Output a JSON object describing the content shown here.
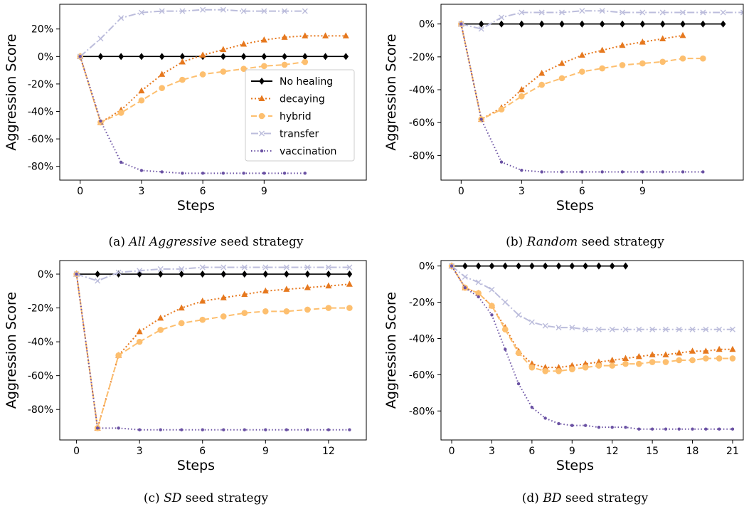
{
  "series_styles": [
    {
      "name": "No healing",
      "color": "#000000",
      "marker": "diamond",
      "dash": ""
    },
    {
      "name": "decaying",
      "color": "#e6781e",
      "marker": "triangle",
      "dash": "2,3"
    },
    {
      "name": "hybrid",
      "color": "#fdbf6f",
      "marker": "circle",
      "dash": "8,4"
    },
    {
      "name": "transfer",
      "color": "#bcbddc",
      "marker": "x",
      "dash": "10,3,2,3"
    },
    {
      "name": "vaccination",
      "color": "#6a51a3",
      "marker": "dot",
      "dash": "1.5,3"
    }
  ],
  "chart_data": [
    {
      "type": "line",
      "caption_prefix": "(a) ",
      "caption_italic": "All Aggressive",
      "caption_suffix": " seed strategy",
      "xlabel": "Steps",
      "ylabel": "Aggression Score",
      "xlim": [
        -1,
        14
      ],
      "ylim": [
        -0.9,
        0.38
      ],
      "xticks": [
        0,
        3,
        6,
        9
      ],
      "yticks": [
        -0.8,
        -0.6,
        -0.4,
        -0.2,
        0,
        0.2
      ],
      "legend": "center-right",
      "series": [
        {
          "name": "No healing",
          "x": [
            0,
            1,
            2,
            3,
            4,
            5,
            6,
            7,
            8,
            9,
            10,
            11,
            12,
            13
          ],
          "values": [
            0,
            0,
            0,
            0,
            0,
            0,
            0,
            0,
            0,
            0,
            0,
            0,
            0,
            0
          ]
        },
        {
          "name": "decaying",
          "x": [
            0,
            1,
            2,
            3,
            4,
            5,
            6,
            7,
            8,
            9,
            10,
            11,
            12,
            13
          ],
          "values": [
            0,
            -0.48,
            -0.39,
            -0.25,
            -0.13,
            -0.04,
            0.01,
            0.05,
            0.09,
            0.12,
            0.14,
            0.15,
            0.15,
            0.15
          ]
        },
        {
          "name": "hybrid",
          "x": [
            0,
            1,
            2,
            3,
            4,
            5,
            6,
            7,
            8,
            9,
            10,
            11
          ],
          "values": [
            0,
            -0.48,
            -0.41,
            -0.32,
            -0.23,
            -0.17,
            -0.13,
            -0.11,
            -0.09,
            -0.07,
            -0.06,
            -0.04
          ]
        },
        {
          "name": "transfer",
          "x": [
            0,
            1,
            2,
            3,
            4,
            5,
            6,
            7,
            8,
            9,
            10,
            11
          ],
          "values": [
            0,
            0.13,
            0.28,
            0.32,
            0.33,
            0.33,
            0.34,
            0.34,
            0.33,
            0.33,
            0.33,
            0.33
          ]
        },
        {
          "name": "vaccination",
          "x": [
            0,
            1,
            2,
            3,
            4,
            5,
            6,
            7,
            8,
            9,
            10,
            11
          ],
          "values": [
            0,
            -0.47,
            -0.77,
            -0.83,
            -0.84,
            -0.85,
            -0.85,
            -0.85,
            -0.85,
            -0.85,
            -0.85,
            -0.85
          ]
        }
      ]
    },
    {
      "type": "line",
      "caption_prefix": "(b) ",
      "caption_italic": "Random",
      "caption_suffix": " seed strategy",
      "xlabel": "Steps",
      "ylabel": "Aggression Score",
      "xlim": [
        -1,
        14
      ],
      "ylim": [
        -0.95,
        0.12
      ],
      "xticks": [
        0,
        3,
        6,
        9
      ],
      "yticks": [
        -0.8,
        -0.6,
        -0.4,
        -0.2,
        0
      ],
      "legend": "none",
      "series": [
        {
          "name": "No healing",
          "x": [
            0,
            1,
            2,
            3,
            4,
            5,
            6,
            7,
            8,
            9,
            10,
            11,
            12,
            13
          ],
          "values": [
            0,
            0,
            0,
            0,
            0,
            0,
            0,
            0,
            0,
            0,
            0,
            0,
            0,
            0
          ]
        },
        {
          "name": "decaying",
          "x": [
            0,
            1,
            2,
            3,
            4,
            5,
            6,
            7,
            8,
            9,
            10,
            11
          ],
          "values": [
            0,
            -0.58,
            -0.51,
            -0.4,
            -0.3,
            -0.24,
            -0.19,
            -0.16,
            -0.13,
            -0.11,
            -0.09,
            -0.07
          ]
        },
        {
          "name": "hybrid",
          "x": [
            0,
            1,
            2,
            3,
            4,
            5,
            6,
            7,
            8,
            9,
            10,
            11,
            12
          ],
          "values": [
            0,
            -0.58,
            -0.52,
            -0.44,
            -0.37,
            -0.33,
            -0.29,
            -0.27,
            -0.25,
            -0.24,
            -0.23,
            -0.21,
            -0.21
          ]
        },
        {
          "name": "transfer",
          "x": [
            0,
            1,
            2,
            3,
            4,
            5,
            6,
            7,
            8,
            9,
            10,
            11,
            12,
            13,
            14
          ],
          "values": [
            0,
            -0.03,
            0.04,
            0.07,
            0.07,
            0.07,
            0.08,
            0.08,
            0.07,
            0.07,
            0.07,
            0.07,
            0.07,
            0.07,
            0.07
          ]
        },
        {
          "name": "vaccination",
          "x": [
            0,
            1,
            2,
            3,
            4,
            5,
            6,
            7,
            8,
            9,
            10,
            11,
            12
          ],
          "values": [
            0,
            -0.58,
            -0.84,
            -0.89,
            -0.9,
            -0.9,
            -0.9,
            -0.9,
            -0.9,
            -0.9,
            -0.9,
            -0.9,
            -0.9
          ]
        }
      ]
    },
    {
      "type": "line",
      "caption_prefix": "(c) ",
      "caption_italic": "SD",
      "caption_suffix": " seed strategy",
      "xlabel": "Steps",
      "ylabel": "Aggression Score",
      "xlim": [
        -0.8,
        13.8
      ],
      "ylim": [
        -0.98,
        0.08
      ],
      "xticks": [
        0,
        3,
        6,
        9,
        12
      ],
      "yticks": [
        -0.8,
        -0.6,
        -0.4,
        -0.2,
        0
      ],
      "legend": "none",
      "series": [
        {
          "name": "No healing",
          "x": [
            0,
            1,
            2,
            3,
            4,
            5,
            6,
            7,
            8,
            9,
            10,
            11,
            12,
            13
          ],
          "values": [
            0,
            0,
            0,
            0,
            0,
            0,
            0,
            0,
            0,
            0,
            0,
            0,
            0,
            0
          ]
        },
        {
          "name": "decaying",
          "x": [
            0,
            1,
            2,
            3,
            4,
            5,
            6,
            7,
            8,
            9,
            10,
            11,
            12,
            13
          ],
          "values": [
            0,
            -0.91,
            -0.48,
            -0.34,
            -0.26,
            -0.2,
            -0.16,
            -0.14,
            -0.12,
            -0.1,
            -0.09,
            -0.08,
            -0.07,
            -0.06
          ]
        },
        {
          "name": "hybrid",
          "x": [
            0,
            1,
            2,
            3,
            4,
            5,
            6,
            7,
            8,
            9,
            10,
            11,
            12,
            13
          ],
          "values": [
            0,
            -0.91,
            -0.48,
            -0.4,
            -0.33,
            -0.29,
            -0.27,
            -0.25,
            -0.23,
            -0.22,
            -0.22,
            -0.21,
            -0.2,
            -0.2
          ]
        },
        {
          "name": "transfer",
          "x": [
            0,
            1,
            2,
            3,
            4,
            5,
            6,
            7,
            8,
            9,
            10,
            11,
            12,
            13
          ],
          "values": [
            0,
            -0.04,
            0.01,
            0.02,
            0.03,
            0.03,
            0.04,
            0.04,
            0.04,
            0.04,
            0.04,
            0.04,
            0.04,
            0.04
          ]
        },
        {
          "name": "vaccination",
          "x": [
            0,
            1,
            2,
            3,
            4,
            5,
            6,
            7,
            8,
            9,
            10,
            11,
            12,
            13
          ],
          "values": [
            0,
            -0.91,
            -0.91,
            -0.92,
            -0.92,
            -0.92,
            -0.92,
            -0.92,
            -0.92,
            -0.92,
            -0.92,
            -0.92,
            -0.92,
            -0.92
          ]
        }
      ]
    },
    {
      "type": "line",
      "caption_prefix": "(d) ",
      "caption_italic": "BD",
      "caption_suffix": " seed strategy",
      "xlabel": "Steps",
      "ylabel": "Aggression Score",
      "xlim": [
        -0.8,
        21.8
      ],
      "ylim": [
        -0.96,
        0.03
      ],
      "xticks": [
        0,
        3,
        6,
        9,
        12,
        15,
        18,
        21
      ],
      "yticks": [
        -0.8,
        -0.6,
        -0.4,
        -0.2,
        0
      ],
      "legend": "none",
      "series": [
        {
          "name": "No healing",
          "x": [
            0,
            1,
            2,
            3,
            4,
            5,
            6,
            7,
            8,
            9,
            10,
            11,
            12,
            13
          ],
          "values": [
            0,
            0,
            0,
            0,
            0,
            0,
            0,
            0,
            0,
            0,
            0,
            0,
            0,
            0
          ]
        },
        {
          "name": "decaying",
          "x": [
            0,
            1,
            2,
            3,
            4,
            5,
            6,
            7,
            8,
            9,
            10,
            11,
            12,
            13,
            14,
            15,
            16,
            17,
            18,
            19,
            20,
            21
          ],
          "values": [
            0,
            -0.12,
            -0.15,
            -0.22,
            -0.34,
            -0.47,
            -0.54,
            -0.56,
            -0.56,
            -0.55,
            -0.54,
            -0.53,
            -0.52,
            -0.51,
            -0.5,
            -0.49,
            -0.49,
            -0.48,
            -0.47,
            -0.47,
            -0.46,
            -0.46
          ]
        },
        {
          "name": "hybrid",
          "x": [
            0,
            1,
            2,
            3,
            4,
            5,
            6,
            7,
            8,
            9,
            10,
            11,
            12,
            13,
            14,
            15,
            16,
            17,
            18,
            19,
            20,
            21
          ],
          "values": [
            0,
            -0.12,
            -0.15,
            -0.22,
            -0.35,
            -0.48,
            -0.56,
            -0.58,
            -0.58,
            -0.57,
            -0.56,
            -0.55,
            -0.55,
            -0.54,
            -0.54,
            -0.53,
            -0.53,
            -0.52,
            -0.52,
            -0.51,
            -0.51,
            -0.51
          ]
        },
        {
          "name": "transfer",
          "x": [
            0,
            1,
            2,
            3,
            4,
            5,
            6,
            7,
            8,
            9,
            10,
            11,
            12,
            13,
            14,
            15,
            16,
            17,
            18,
            19,
            20,
            21
          ],
          "values": [
            0,
            -0.06,
            -0.09,
            -0.13,
            -0.2,
            -0.27,
            -0.31,
            -0.33,
            -0.34,
            -0.34,
            -0.35,
            -0.35,
            -0.35,
            -0.35,
            -0.35,
            -0.35,
            -0.35,
            -0.35,
            -0.35,
            -0.35,
            -0.35,
            -0.35
          ]
        },
        {
          "name": "vaccination",
          "x": [
            0,
            1,
            2,
            3,
            4,
            5,
            6,
            7,
            8,
            9,
            10,
            11,
            12,
            13,
            14,
            15,
            16,
            17,
            18,
            19,
            20,
            21
          ],
          "values": [
            0,
            -0.12,
            -0.17,
            -0.27,
            -0.46,
            -0.65,
            -0.78,
            -0.84,
            -0.87,
            -0.88,
            -0.88,
            -0.89,
            -0.89,
            -0.89,
            -0.9,
            -0.9,
            -0.9,
            -0.9,
            -0.9,
            -0.9,
            -0.9,
            -0.9
          ]
        }
      ]
    }
  ]
}
